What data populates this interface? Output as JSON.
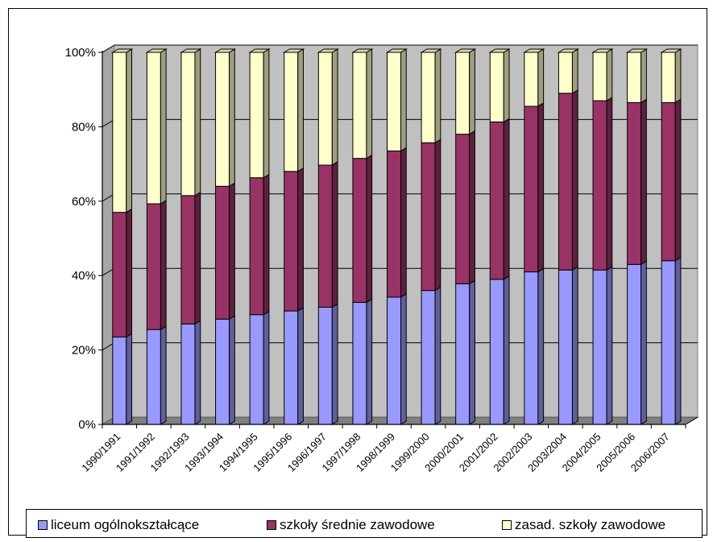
{
  "chart_data": {
    "type": "bar",
    "stacked": "percent",
    "three_d": true,
    "categories": [
      "1990/1991",
      "1991/1992",
      "1992/1993",
      "1993/1994",
      "1994/1995",
      "1995/1996",
      "1996/1997",
      "1997/1998",
      "1998/1999",
      "1999/2000",
      "2000/2001",
      "2001/2002",
      "2002/2003",
      "2003/2004",
      "2004/2005",
      "2005/2006",
      "2006/2007"
    ],
    "series": [
      {
        "name": "liceum ogólnokształcące",
        "color": "#9999ff",
        "values": [
          23.5,
          25.5,
          27,
          28.3,
          29.5,
          30.5,
          31.5,
          32.8,
          34.2,
          36,
          37.8,
          39,
          41,
          41.5,
          41.5,
          43,
          44
        ]
      },
      {
        "name": "szkoły średnie zawodowe",
        "color": "#993366",
        "values": [
          33.5,
          33.8,
          34.5,
          35.7,
          36.8,
          37.5,
          38.2,
          38.7,
          39.3,
          39.7,
          40.2,
          42.3,
          44.5,
          47.5,
          45.5,
          43.5,
          42.5
        ]
      },
      {
        "name": "zasad. szkoły zawodowe",
        "color": "#ffffcc",
        "values": [
          43,
          40.7,
          38.5,
          36,
          33.7,
          32,
          30.3,
          28.5,
          26.5,
          24.3,
          22,
          18.7,
          14.5,
          11,
          13,
          13.5,
          13.5
        ]
      }
    ],
    "ytick_labels": [
      "0%",
      "20%",
      "40%",
      "60%",
      "80%",
      "100%"
    ],
    "ylim": [
      0,
      100
    ],
    "grid": true,
    "plot_background": "#c0c0c0",
    "legend_position": "bottom"
  }
}
